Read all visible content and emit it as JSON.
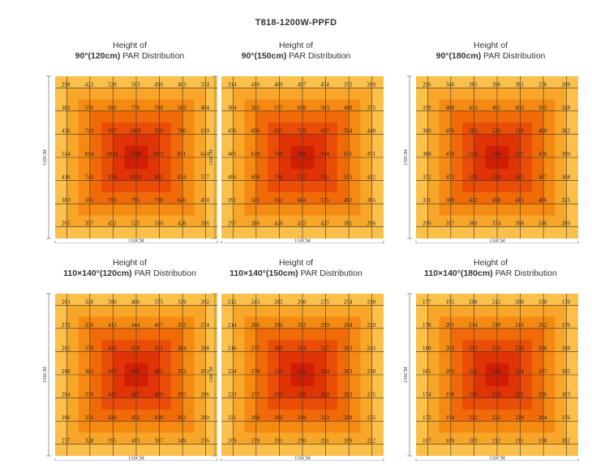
{
  "title": "T818-1200W-PPFD",
  "colors": {
    "rings": [
      "#fbc04a",
      "#f8a62a",
      "#f58a12",
      "#f06a08",
      "#ea4d07",
      "#e03306",
      "#d21e05"
    ],
    "text": "#222222",
    "grid": "#333333"
  },
  "chart_data": [
    {
      "type": "heatmap",
      "title_line1": "Height of",
      "title_bold": "90°(120cm)",
      "title_rest": " PAR Distribution",
      "xlabel": "150CM",
      "ylabel": "150CM",
      "values": [
        [
          298,
          423,
          520,
          563,
          490,
          403,
          374
        ],
        [
          382,
          576,
          696,
          776,
          700,
          583,
          404
        ],
        [
          436,
          743,
          937,
          1006,
          950,
          786,
          639
        ],
        [
          524,
          814,
          1033,
          1138,
          1071,
          871,
          624
        ],
        [
          416,
          749,
          970,
          1039,
          992,
          814,
          577
        ],
        [
          383,
          565,
          703,
          795,
          758,
          626,
          450
        ],
        [
          265,
          397,
          452,
          525,
          510,
          428,
          316
        ]
      ]
    },
    {
      "type": "heatmap",
      "title_line1": "Height of",
      "title_bold": "90°(150cm)",
      "title_rest": " PAR Distribution",
      "xlabel": "150CM",
      "ylabel": "150CM",
      "values": [
        [
          314,
          410,
          469,
          497,
          454,
          372,
          289
        ],
        [
          384,
          505,
          577,
          608,
          583,
          480,
          375
        ],
        [
          456,
          606,
          695,
          739,
          697,
          594,
          448
        ],
        [
          485,
          639,
          740,
          784,
          744,
          631,
          471
        ],
        [
          466,
          608,
          706,
          737,
          702,
          593,
          412
        ],
        [
          391,
          501,
          562,
          604,
          575,
          492,
          365
        ],
        [
          297,
          380,
          428,
          432,
          427,
          381,
          296
        ]
      ]
    },
    {
      "type": "heatmap",
      "title_line1": "Height of",
      "title_bold": "90°(180cm)",
      "title_rest": " PAR Distribution",
      "xlabel": "150CM",
      "ylabel": "150CM",
      "values": [
        [
          296,
          346,
          365,
          396,
          361,
          336,
          280
        ],
        [
          339,
          408,
          453,
          465,
          456,
          395,
          328
        ],
        [
          369,
          456,
          503,
          526,
          510,
          460,
          362
        ],
        [
          388,
          470,
          523,
          544,
          537,
          476,
          390
        ],
        [
          372,
          453,
          502,
          524,
          505,
          467,
          368
        ],
        [
          331,
          389,
          432,
          458,
          415,
          406,
          325
        ],
        [
          290,
          317,
          360,
          374,
          368,
          246,
          280
        ]
      ]
    },
    {
      "type": "heatmap",
      "title_line1": "Height of",
      "title_bold": "110×140°(120cm)",
      "title_rest": " PAR Distribution",
      "xlabel": "150CM",
      "ylabel": "150CM",
      "values": [
        [
          263,
          320,
          390,
          406,
          375,
          329,
          262
        ],
        [
          272,
          336,
          413,
          444,
          407,
          352,
          274
        ],
        [
          282,
          376,
          444,
          479,
          451,
          384,
          288
        ],
        [
          288,
          382,
          447,
          476,
          462,
          393,
          291
        ],
        [
          284,
          378,
          445,
          467,
          460,
          395,
          286
        ],
        [
          266,
          351,
          420,
          452,
          438,
          362,
          280
        ],
        [
          257,
          328,
          395,
          413,
          397,
          349,
          276
        ]
      ]
    },
    {
      "type": "heatmap",
      "title_line1": "Height of",
      "title_bold": "110×140°(150cm)",
      "title_rest": " PAR Distribution",
      "xlabel": "150CM",
      "ylabel": "150CM",
      "values": [
        [
          212,
          243,
          282,
          290,
          275,
          254,
          218
        ],
        [
          214,
          266,
          296,
          312,
          299,
          264,
          229
        ],
        [
          216,
          275,
          309,
          324,
          317,
          283,
          243
        ],
        [
          224,
          278,
          320,
          332,
          320,
          283,
          238
        ],
        [
          223,
          277,
          313,
          329,
          320,
          283,
          235
        ],
        [
          221,
          266,
          306,
          318,
          313,
          280,
          235
        ],
        [
          209,
          279,
          291,
          290,
          291,
          269,
          222
        ]
      ]
    },
    {
      "type": "heatmap",
      "title_line1": "Height of",
      "title_bold": "110×140°(180cm)",
      "title_rest": " PAR Distribution",
      "xlabel": "150CM",
      "ylabel": "150CM",
      "values": [
        [
          177,
          195,
          208,
          212,
          208,
          190,
          170
        ],
        [
          178,
          201,
          214,
          219,
          216,
          202,
          176
        ],
        [
          180,
          203,
          217,
          223,
          220,
          206,
          180
        ],
        [
          181,
          205,
          222,
          226,
          224,
          207,
          185
        ],
        [
          174,
          198,
          216,
          223,
          222,
          206,
          183
        ],
        [
          172,
          194,
          212,
          221,
          218,
          204,
          176
        ],
        [
          167,
          189,
          203,
          212,
          211,
          198,
          182
        ]
      ]
    }
  ]
}
